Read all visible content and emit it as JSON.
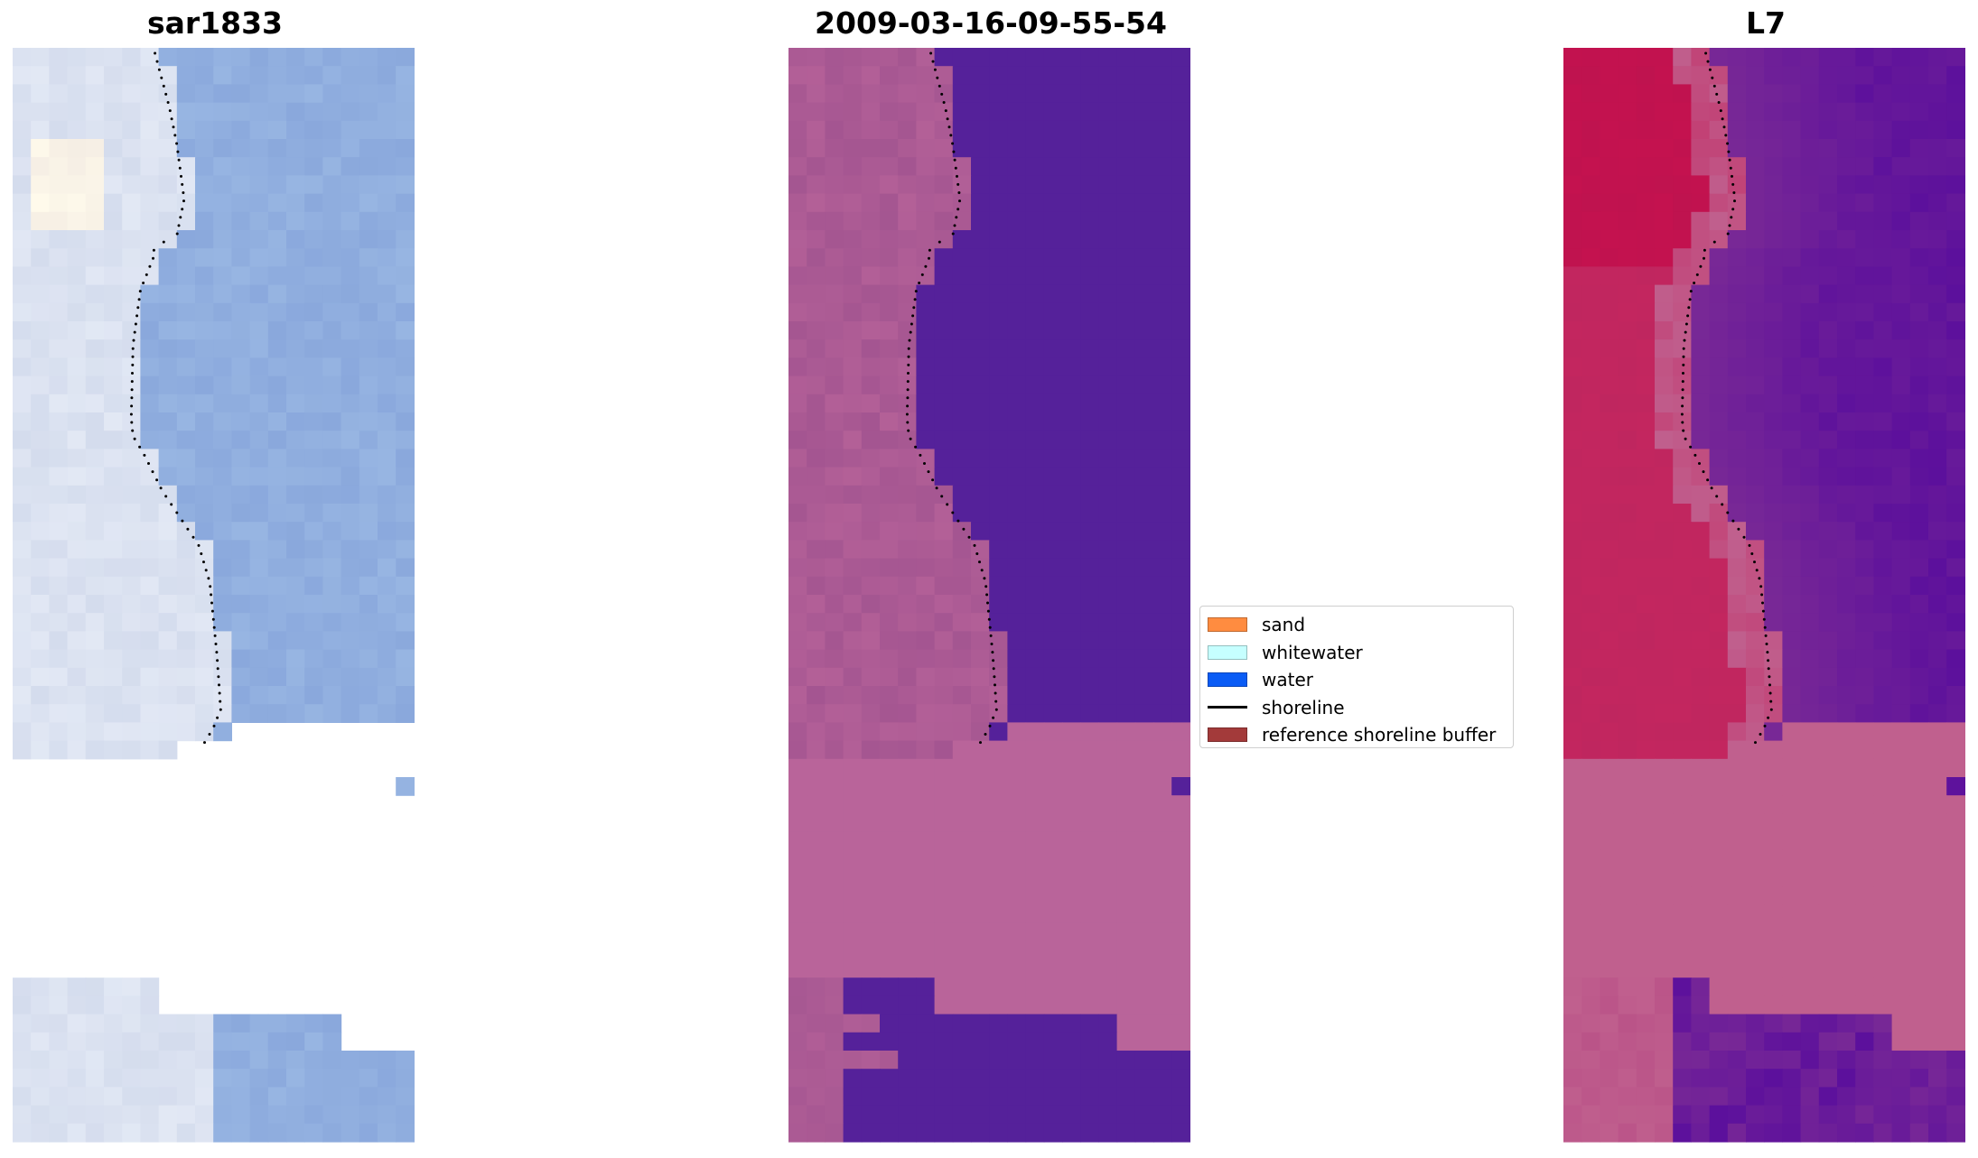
{
  "titles": {
    "left": "sar1833",
    "center": "2009-03-16-09-55-54",
    "right": "L7"
  },
  "legend": {
    "items": [
      {
        "label": "sand",
        "color": "#ff8c40",
        "kind": "patch"
      },
      {
        "label": "whitewater",
        "color": "#c6ffff",
        "kind": "patch"
      },
      {
        "label": "water",
        "color": "#0a5cf5",
        "kind": "patch"
      },
      {
        "label": "shoreline",
        "color": "#000000",
        "kind": "line"
      },
      {
        "label": "reference shoreline buffer",
        "color": "#a33a3a",
        "kind": "patch"
      }
    ]
  },
  "colors": {
    "rgb_water": "#8aa8dc",
    "rgb_land": "#d4dced",
    "class_sand": "#b9649a",
    "class_water": "#55219a",
    "class_land_dark": "#9b4f8d",
    "l7_sand": "#c0608e",
    "l7_land": "#c4124f",
    "l7_water": "#5c109c",
    "shoreline": "#000000"
  }
}
